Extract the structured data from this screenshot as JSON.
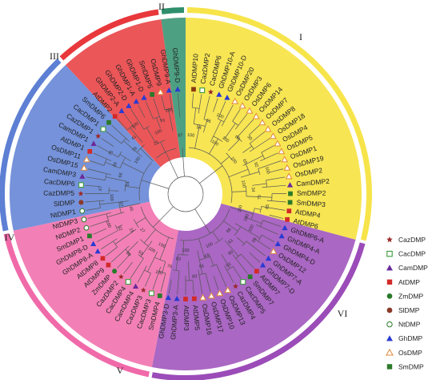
{
  "colors": {
    "I": "#f7e44a",
    "II": "#2f8f6d",
    "III": "#e8383c",
    "IV": "#5d7fd4",
    "V": "#f06aa9",
    "VI": "#9b4cb8",
    "star": "#9b2a2a",
    "square_open": "#3a9a3a",
    "tri_purple": "#6a2a9b",
    "square_red": "#d22a2a",
    "circle_green": "#2a7a2a",
    "circle_brown": "#8a3a2a",
    "tri_blue": "#2a3ad2",
    "tri_open": "#e08a3a",
    "square_green": "#2a7a2a"
  },
  "clades": [
    {
      "id": "I",
      "label": "I"
    },
    {
      "id": "II",
      "label": "II"
    },
    {
      "id": "III",
      "label": "III"
    },
    {
      "id": "IV",
      "label": "IV"
    },
    {
      "id": "V",
      "label": "V"
    },
    {
      "id": "VI",
      "label": "VI"
    }
  ],
  "leaves": [
    {
      "name": "AtDMP10",
      "marker": "square_brown"
    },
    {
      "name": "CazDMP2",
      "marker": "square_open"
    },
    {
      "name": "CacDMP6",
      "marker": "star"
    },
    {
      "name": "GhDMP10-A",
      "marker": "tri_blue"
    },
    {
      "name": "GhDMP10-D",
      "marker": "tri_blue"
    },
    {
      "name": "OsDMP20",
      "marker": "tri_open"
    },
    {
      "name": "OsDMP3",
      "marker": "tri_open"
    },
    {
      "name": "OsDMP6",
      "marker": "tri_open"
    },
    {
      "name": "OsDMP14",
      "marker": "tri_open"
    },
    {
      "name": "OsDMP7",
      "marker": "tri_open"
    },
    {
      "name": "OsDMP8",
      "marker": "tri_open"
    },
    {
      "name": "OsDMP18",
      "marker": "tri_open"
    },
    {
      "name": "OsDMP4",
      "marker": "tri_open"
    },
    {
      "name": "OsDMP5",
      "marker": "tri_open"
    },
    {
      "name": "OsDMP1",
      "marker": "tri_open"
    },
    {
      "name": "OsDMP19",
      "marker": "tri_open"
    },
    {
      "name": "OsDMP2",
      "marker": "tri_open"
    },
    {
      "name": "CamDMP2",
      "marker": "tri_purple"
    },
    {
      "name": "SmDMP2",
      "marker": "square_green"
    },
    {
      "name": "SmDMP3",
      "marker": "square_green"
    },
    {
      "name": "AtDMP4",
      "marker": "square_red"
    },
    {
      "name": "AtDMP6",
      "marker": "square_red"
    },
    {
      "name": "GhDMP6-A",
      "marker": "tri_blue"
    },
    {
      "name": "GhDMP4-A",
      "marker": "tri_blue"
    },
    {
      "name": "GhDMP4-D",
      "marker": "tri_blue"
    },
    {
      "name": "OsDMP12",
      "marker": "tri_open"
    },
    {
      "name": "GhDMP7-A",
      "marker": "tri_blue"
    },
    {
      "name": "GhDMP7-D",
      "marker": "tri_blue"
    },
    {
      "name": "AtDMP7",
      "marker": "square_red"
    },
    {
      "name": "SmDMP7",
      "marker": "square_green"
    },
    {
      "name": "CacDMP5",
      "marker": "square_open"
    },
    {
      "name": "CazDMP4",
      "marker": "star"
    },
    {
      "name": "OsDMP13",
      "marker": "tri_open"
    },
    {
      "name": "OsDMP10",
      "marker": "tri_open"
    },
    {
      "name": "OsDMP17",
      "marker": "tri_open"
    },
    {
      "name": "OsDMP16",
      "marker": "tri_open"
    },
    {
      "name": "AtDMP5",
      "marker": "square_red"
    },
    {
      "name": "AtDMP3",
      "marker": "square_red"
    },
    {
      "name": "GhDMP3-A",
      "marker": "tri_blue"
    },
    {
      "name": "GhDMP3-D",
      "marker": "tri_blue"
    },
    {
      "name": "SmDMP4",
      "marker": "square_green"
    },
    {
      "name": "CacDMP3",
      "marker": "square_open"
    },
    {
      "name": "CazDMP3",
      "marker": "star"
    },
    {
      "name": "CamDMP4",
      "marker": "tri_purple"
    },
    {
      "name": "CacDMP4",
      "marker": "square_open"
    },
    {
      "name": "CazDMP2",
      "marker": "star"
    },
    {
      "name": "ZmDMP",
      "marker": "circle_green"
    },
    {
      "name": "AtDMP9",
      "marker": "square_red"
    },
    {
      "name": "AtDMP8",
      "marker": "square_red"
    },
    {
      "name": "GhDMP8-A",
      "marker": "tri_blue"
    },
    {
      "name": "GhDMP8-D",
      "marker": "tri_blue"
    },
    {
      "name": "SmDMP1",
      "marker": "square_green"
    },
    {
      "name": "NtDMP2",
      "marker": "circle_open"
    },
    {
      "name": "NtDMP3",
      "marker": "circle_open"
    },
    {
      "name": "NtDMP1",
      "marker": "circle_open"
    },
    {
      "name": "SlDMP",
      "marker": "circle_brown"
    },
    {
      "name": "CazDMP5",
      "marker": "star"
    },
    {
      "name": "CacDMP6",
      "marker": "square_open"
    },
    {
      "name": "CamDMP3",
      "marker": "tri_purple"
    },
    {
      "name": "OsDMP15",
      "marker": "tri_open"
    },
    {
      "name": "OsDMP11",
      "marker": "tri_open"
    },
    {
      "name": "AtDMP1",
      "marker": "square_red"
    },
    {
      "name": "CamDMP1",
      "marker": "tri_purple"
    },
    {
      "name": "CazDMP1",
      "marker": "star"
    },
    {
      "name": "CacDMP1",
      "marker": "square_open"
    },
    {
      "name": "SmDMP6",
      "marker": "square_green"
    },
    {
      "name": "AtDMP2",
      "marker": "square_red"
    },
    {
      "name": "GhDMP2-A",
      "marker": "tri_blue"
    },
    {
      "name": "GhDMP2-D",
      "marker": "tri_blue"
    },
    {
      "name": "GhDMP1-A",
      "marker": "tri_blue"
    },
    {
      "name": "GhDMP1-D",
      "marker": "tri_blue"
    },
    {
      "name": "SmDMP5",
      "marker": "square_green"
    },
    {
      "name": "OsDMP9",
      "marker": "tri_open"
    },
    {
      "name": "GhDMP9-A",
      "marker": "tri_blue"
    },
    {
      "name": "GhDMP9-D",
      "marker": "tri_blue"
    }
  ],
  "bootstrap": [
    "100",
    "54",
    "51",
    "100",
    "100",
    "100",
    "68",
    "30",
    "100",
    "69",
    "92",
    "100",
    "100",
    "34",
    "70",
    "65",
    "100",
    "100",
    "100",
    "95",
    "66",
    "61",
    "90",
    "93",
    "100",
    "43",
    "55",
    "83",
    "100",
    "82",
    "79",
    "100",
    "100",
    "100",
    "93",
    "60",
    "27",
    "21",
    "32",
    "100",
    "45",
    "87",
    "100",
    "47",
    "54",
    "66",
    "39",
    "75",
    "100",
    "78",
    "41",
    "100",
    "25",
    "100",
    "70",
    "100",
    "87"
  ],
  "legend": [
    {
      "label": "CazDMP",
      "marker": "star"
    },
    {
      "label": "CacDMP",
      "marker": "square_open"
    },
    {
      "label": "CamDMP",
      "marker": "tri_purple"
    },
    {
      "label": "AtDMP",
      "marker": "square_red"
    },
    {
      "label": "ZmDMP",
      "marker": "circle_green"
    },
    {
      "label": "SlDMP",
      "marker": "circle_brown"
    },
    {
      "label": "NtDMP",
      "marker": "circle_open"
    },
    {
      "label": "GhDMP",
      "marker": "tri_blue"
    },
    {
      "label": "OsDMP",
      "marker": "tri_open"
    },
    {
      "label": "SmDMP",
      "marker": "square_green"
    }
  ]
}
